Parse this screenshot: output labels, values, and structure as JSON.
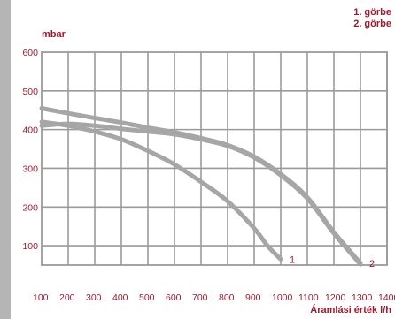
{
  "legend": {
    "line1": "1. görbe",
    "line2": "2. görbe"
  },
  "colors": {
    "accent": "#9b1b30",
    "grid": "#9a9a9a",
    "curve": "#a6a6a6",
    "side_bar": "#b5b5b5"
  },
  "chart_data": {
    "type": "line",
    "title": "",
    "xlabel": "Áramlási érték l/h",
    "ylabel": "mbar",
    "xlim": [
      100,
      1400
    ],
    "ylim": [
      50,
      600
    ],
    "x_ticks": [
      100,
      200,
      300,
      400,
      500,
      600,
      700,
      800,
      900,
      1000,
      1100,
      1200,
      1300,
      1400
    ],
    "y_ticks": [
      100,
      200,
      300,
      400,
      500,
      600
    ],
    "grid": true,
    "legend_position": "top-right",
    "series": [
      {
        "name": "1",
        "label": "1",
        "x": [
          100,
          200,
          300,
          400,
          500,
          600,
          700,
          800,
          900,
          950,
          1000
        ],
        "y": [
          420,
          410,
          395,
          375,
          345,
          310,
          265,
          215,
          145,
          100,
          65
        ]
      },
      {
        "name": "2",
        "label": "2",
        "x": [
          100,
          200,
          300,
          400,
          500,
          600,
          700,
          800,
          900,
          1000,
          1100,
          1200,
          1300
        ],
        "y": [
          455,
          442,
          430,
          418,
          405,
          393,
          378,
          360,
          330,
          285,
          225,
          135,
          55
        ]
      },
      {
        "x": [
          100,
          200,
          300,
          400,
          500,
          600,
          700,
          800,
          900,
          1000,
          1100,
          1200,
          1300
        ],
        "y": [
          410,
          415,
          410,
          402,
          395,
          388,
          375,
          358,
          328,
          282,
          222,
          132,
          52
        ]
      }
    ]
  }
}
